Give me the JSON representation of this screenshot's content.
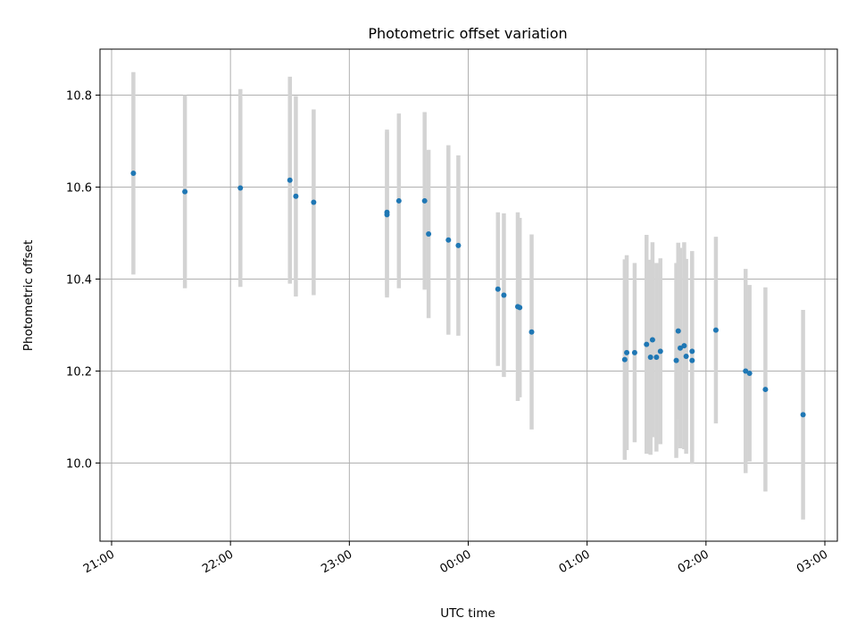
{
  "chart_data": {
    "type": "scatter",
    "title": "Photometric offset variation",
    "xlabel": "UTC time",
    "ylabel": "Photometric offset",
    "xlim": [
      "21:00",
      "03:00"
    ],
    "ylim": [
      9.83,
      10.9
    ],
    "x_ticks": [
      "21:00",
      "22:00",
      "23:00",
      "00:00",
      "01:00",
      "02:00",
      "03:00"
    ],
    "y_ticks": [
      "10.0",
      "10.2",
      "10.4",
      "10.6",
      "10.8"
    ],
    "grid": true,
    "colors": {
      "points": "#1f77b4",
      "errorbars": "#d3d3d3",
      "grid": "#b0b0b0"
    },
    "points": [
      {
        "x": "21:11",
        "y": 10.63,
        "yerr": 0.22
      },
      {
        "x": "21:37",
        "y": 10.59,
        "yerr": 0.21
      },
      {
        "x": "22:05",
        "y": 10.598,
        "yerr": 0.215
      },
      {
        "x": "22:30",
        "y": 10.615,
        "yerr": 0.225
      },
      {
        "x": "22:33",
        "y": 10.58,
        "yerr": 0.218
      },
      {
        "x": "22:42",
        "y": 10.567,
        "yerr": 0.202
      },
      {
        "x": "23:19",
        "y": 10.545,
        "yerr": 0.18
      },
      {
        "x": "23:19",
        "y": 10.54,
        "yerr": 0.18
      },
      {
        "x": "23:25",
        "y": 10.57,
        "yerr": 0.19
      },
      {
        "x": "23:38",
        "y": 10.57,
        "yerr": 0.193
      },
      {
        "x": "23:40",
        "y": 10.498,
        "yerr": 0.183
      },
      {
        "x": "23:50",
        "y": 10.485,
        "yerr": 0.206
      },
      {
        "x": "23:55",
        "y": 10.473,
        "yerr": 0.196
      },
      {
        "x": "00:15",
        "y": 10.378,
        "yerr": 0.167
      },
      {
        "x": "00:18",
        "y": 10.365,
        "yerr": 0.178
      },
      {
        "x": "00:25",
        "y": 10.34,
        "yerr": 0.205
      },
      {
        "x": "00:26",
        "y": 10.338,
        "yerr": 0.195
      },
      {
        "x": "00:32",
        "y": 10.285,
        "yerr": 0.212
      },
      {
        "x": "01:19",
        "y": 10.225,
        "yerr": 0.218
      },
      {
        "x": "01:20",
        "y": 10.24,
        "yerr": 0.212
      },
      {
        "x": "01:24",
        "y": 10.24,
        "yerr": 0.195
      },
      {
        "x": "01:30",
        "y": 10.258,
        "yerr": 0.238
      },
      {
        "x": "01:32",
        "y": 10.23,
        "yerr": 0.212
      },
      {
        "x": "01:33",
        "y": 10.268,
        "yerr": 0.212
      },
      {
        "x": "01:35",
        "y": 10.23,
        "yerr": 0.205
      },
      {
        "x": "01:37",
        "y": 10.243,
        "yerr": 0.202
      },
      {
        "x": "01:45",
        "y": 10.223,
        "yerr": 0.212
      },
      {
        "x": "01:46",
        "y": 10.287,
        "yerr": 0.192
      },
      {
        "x": "01:47",
        "y": 10.25,
        "yerr": 0.218
      },
      {
        "x": "01:49",
        "y": 10.255,
        "yerr": 0.225
      },
      {
        "x": "01:50",
        "y": 10.232,
        "yerr": 0.212
      },
      {
        "x": "01:53",
        "y": 10.243,
        "yerr": 0.218
      },
      {
        "x": "01:53",
        "y": 10.223,
        "yerr": 0.225
      },
      {
        "x": "02:05",
        "y": 10.289,
        "yerr": 0.203
      },
      {
        "x": "02:20",
        "y": 10.2,
        "yerr": 0.222
      },
      {
        "x": "02:22",
        "y": 10.195,
        "yerr": 0.192
      },
      {
        "x": "02:30",
        "y": 10.16,
        "yerr": 0.222
      },
      {
        "x": "02:49",
        "y": 10.105,
        "yerr": 0.228
      }
    ]
  }
}
